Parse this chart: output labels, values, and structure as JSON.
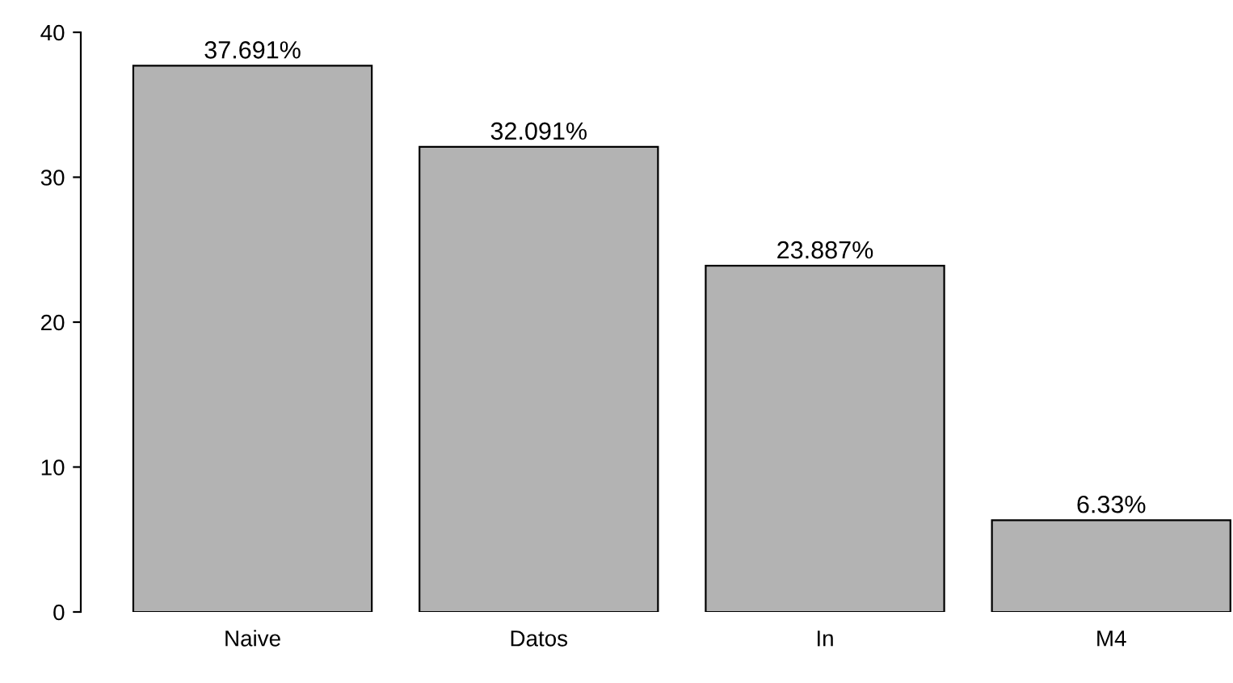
{
  "chart_data": {
    "type": "bar",
    "categories": [
      "Naive",
      "Datos",
      "In",
      "M4"
    ],
    "values": [
      37.691,
      32.091,
      23.887,
      6.33
    ],
    "value_labels": [
      "37.691%",
      "32.091%",
      "23.887%",
      "6.33%"
    ],
    "color": "#b3b3b3",
    "ylim": [
      0,
      40
    ],
    "yticks": [
      0,
      10,
      20,
      30,
      40
    ],
    "grid": false,
    "legend": false
  }
}
